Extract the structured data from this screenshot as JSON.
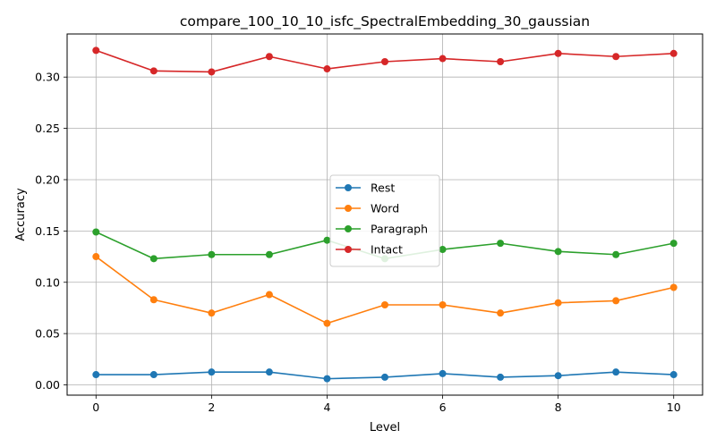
{
  "chart_data": {
    "type": "line",
    "title": "compare_100_10_10_isfc_SpectralEmbedding_30_gaussian",
    "xlabel": "Level",
    "ylabel": "Accuracy",
    "x": [
      0,
      1,
      2,
      3,
      4,
      5,
      6,
      7,
      8,
      9,
      10
    ],
    "xlim": [
      -0.5,
      10.5
    ],
    "ylim": [
      -0.01,
      0.342
    ],
    "xticks": [
      0,
      2,
      4,
      6,
      8,
      10
    ],
    "xtick_labels": [
      "0",
      "2",
      "4",
      "6",
      "8",
      "10"
    ],
    "yticks": [
      0.0,
      0.05,
      0.1,
      0.15,
      0.2,
      0.25,
      0.3
    ],
    "ytick_labels": [
      "0.00",
      "0.05",
      "0.10",
      "0.15",
      "0.20",
      "0.25",
      "0.30"
    ],
    "grid": true,
    "legend_position": "center",
    "series": [
      {
        "name": "Rest",
        "color": "#1f77b4",
        "values": [
          0.01,
          0.01,
          0.0125,
          0.0125,
          0.006,
          0.0075,
          0.011,
          0.0075,
          0.009,
          0.0125,
          0.01
        ]
      },
      {
        "name": "Word",
        "color": "#ff7f0e",
        "values": [
          0.125,
          0.083,
          0.07,
          0.088,
          0.06,
          0.078,
          0.078,
          0.07,
          0.08,
          0.082,
          0.095
        ]
      },
      {
        "name": "Paragraph",
        "color": "#2ca02c",
        "values": [
          0.149,
          0.123,
          0.127,
          0.127,
          0.141,
          0.123,
          0.132,
          0.138,
          0.13,
          0.127,
          0.138
        ]
      },
      {
        "name": "Intact",
        "color": "#d62728",
        "values": [
          0.326,
          0.306,
          0.305,
          0.32,
          0.308,
          0.315,
          0.318,
          0.315,
          0.323,
          0.32,
          0.323
        ]
      }
    ]
  }
}
